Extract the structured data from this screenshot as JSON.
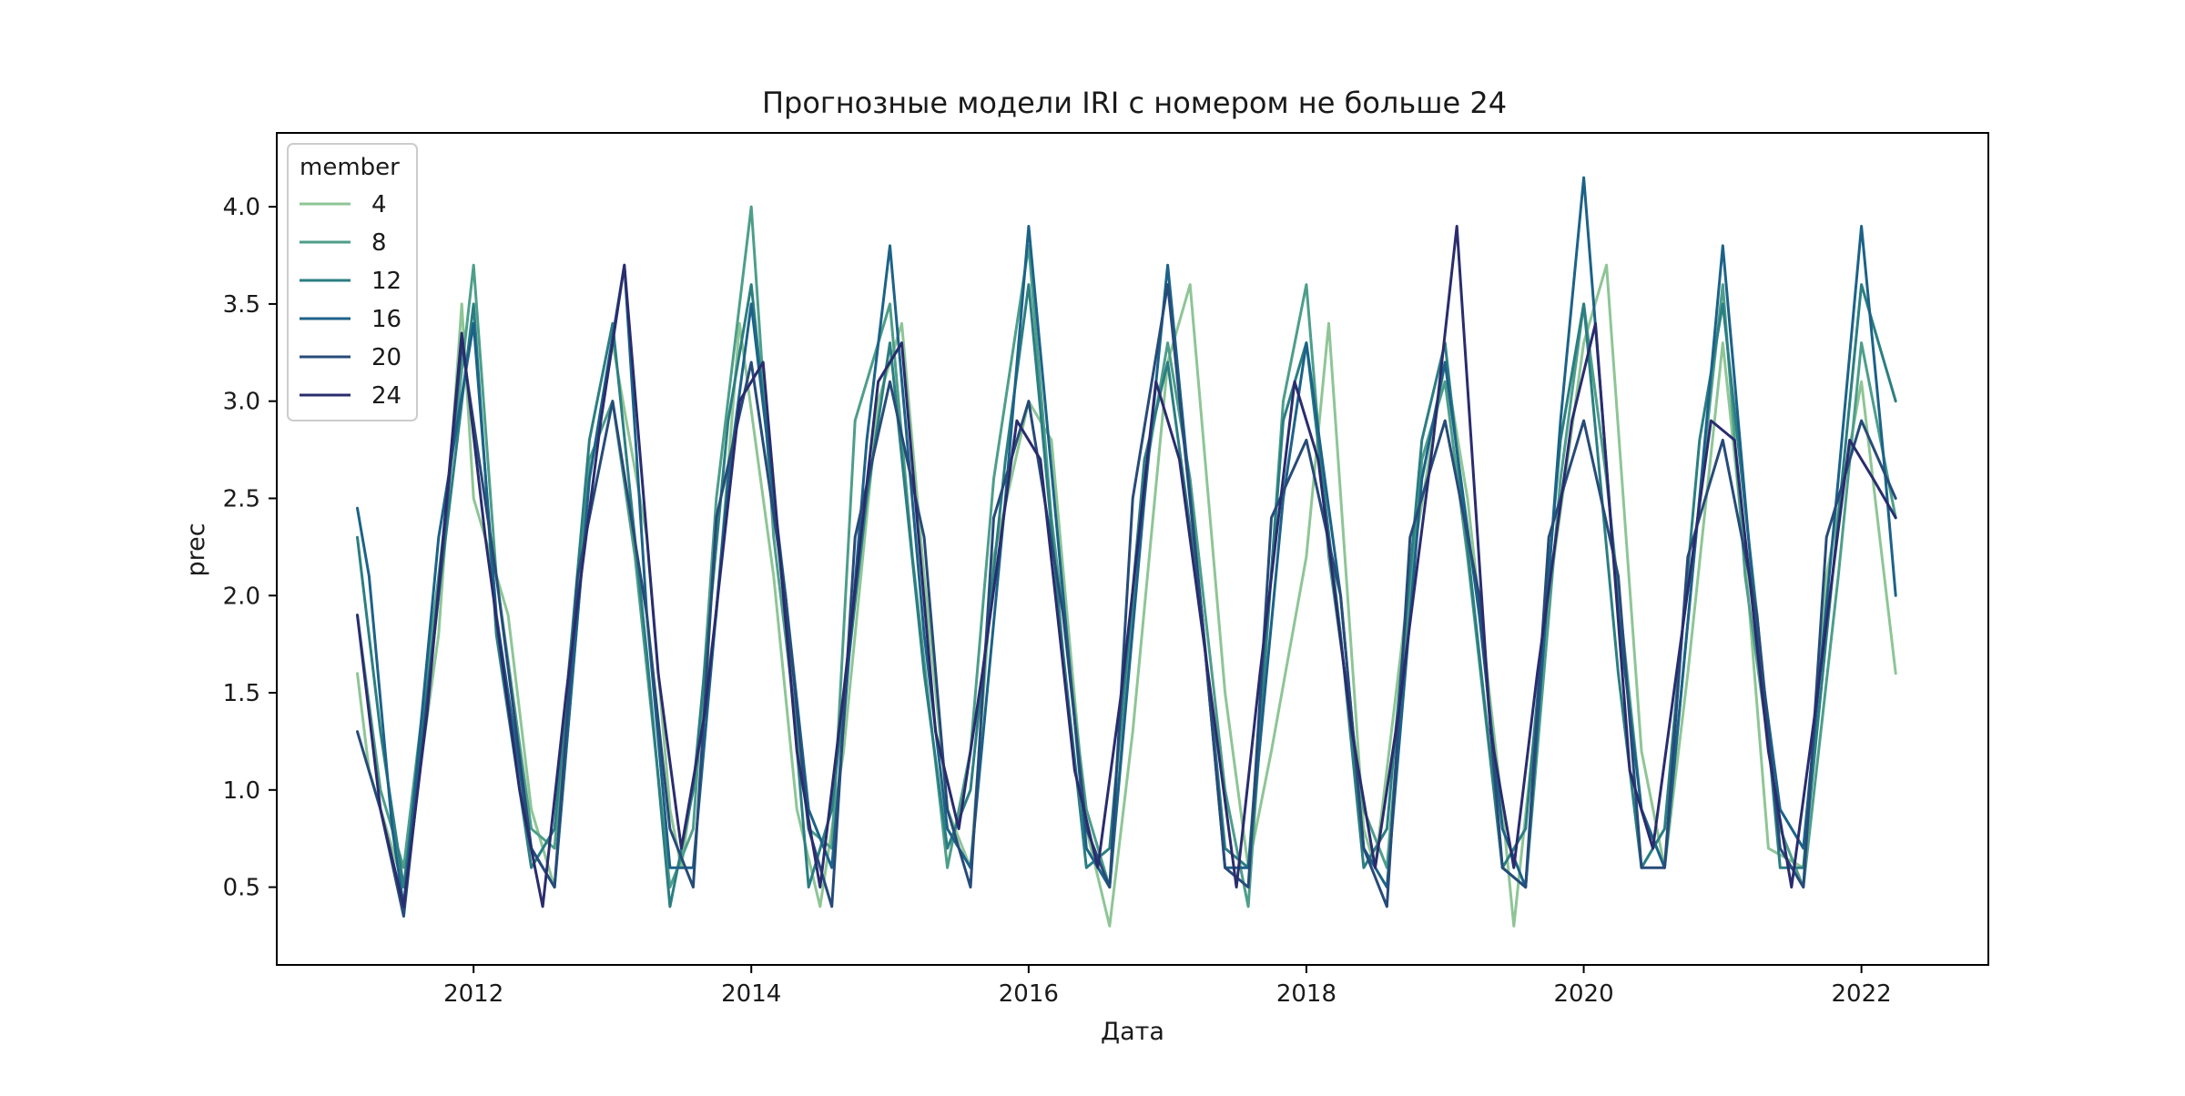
{
  "chart_data": {
    "type": "line",
    "title": "Прогнозные модели IRI с номером не больше 24",
    "xlabel": "Дата",
    "ylabel": "prec",
    "x_axis": {
      "type": "date",
      "range": [
        "2010-08-01",
        "2022-12-01"
      ],
      "ticks": [
        "2012",
        "2014",
        "2016",
        "2018",
        "2020",
        "2022"
      ],
      "tick_dates": [
        "2012-01-01",
        "2014-01-01",
        "2016-01-01",
        "2018-01-01",
        "2020-01-01",
        "2022-01-01"
      ]
    },
    "y_axis": {
      "range": [
        0.1,
        4.38
      ],
      "ticks": [
        "0.5",
        "1.0",
        "1.5",
        "2.0",
        "2.5",
        "3.0",
        "3.5",
        "4.0"
      ],
      "tick_values": [
        0.5,
        1.0,
        1.5,
        2.0,
        2.5,
        3.0,
        3.5,
        4.0
      ]
    },
    "grid": false,
    "legend": {
      "title": "member",
      "position": "top-left"
    },
    "series": [
      {
        "name": "4",
        "color": "#8ec596",
        "x": [
          "2011-03-01",
          "2011-04-01",
          "2011-06-01",
          "2011-07-01",
          "2011-10-01",
          "2011-12-01",
          "2012-01-01",
          "2012-04-01",
          "2012-06-01",
          "2012-08-01",
          "2012-11-01",
          "2013-01-01",
          "2013-04-01",
          "2013-06-01",
          "2013-07-01",
          "2013-10-01",
          "2013-12-01",
          "2014-03-01",
          "2014-05-01",
          "2014-07-01",
          "2014-09-01",
          "2014-12-01",
          "2015-02-01",
          "2015-04-01",
          "2015-06-01",
          "2015-08-01",
          "2015-10-01",
          "2016-01-01",
          "2016-03-01",
          "2016-06-01",
          "2016-08-01",
          "2016-10-01",
          "2017-01-01",
          "2017-03-01",
          "2017-06-01",
          "2017-08-01",
          "2017-10-01",
          "2018-01-01",
          "2018-03-01",
          "2018-06-01",
          "2018-07-01",
          "2018-10-01",
          "2019-01-01",
          "2019-03-01",
          "2019-06-01",
          "2019-07-01",
          "2019-10-01",
          "2020-01-01",
          "2020-03-01",
          "2020-06-01",
          "2020-08-01",
          "2020-10-01",
          "2021-01-01",
          "2021-03-01",
          "2021-05-01",
          "2021-08-01",
          "2021-10-01",
          "2022-01-01",
          "2022-04-01"
        ],
        "values": [
          1.6,
          1.1,
          0.7,
          0.5,
          1.8,
          3.5,
          2.5,
          1.9,
          0.9,
          0.5,
          2.6,
          3.3,
          2.3,
          0.9,
          0.6,
          1.9,
          3.4,
          2.1,
          0.9,
          0.4,
          1.2,
          3.0,
          3.4,
          2.1,
          0.9,
          0.6,
          2.2,
          3.0,
          2.8,
          0.8,
          0.3,
          1.3,
          3.2,
          3.6,
          1.5,
          0.6,
          1.2,
          2.2,
          3.4,
          0.8,
          0.6,
          2.1,
          3.2,
          2.5,
          0.9,
          0.3,
          2.0,
          3.3,
          3.7,
          1.2,
          0.6,
          1.6,
          3.3,
          2.2,
          0.7,
          0.6,
          2.1,
          3.1,
          1.6
        ]
      },
      {
        "name": "8",
        "color": "#4d9e8a",
        "x": [
          "2011-03-01",
          "2011-05-01",
          "2011-07-01",
          "2011-10-01",
          "2012-01-01",
          "2012-03-01",
          "2012-06-01",
          "2012-08-01",
          "2012-11-01",
          "2013-01-01",
          "2013-03-01",
          "2013-06-01",
          "2013-08-01",
          "2013-10-01",
          "2014-01-01",
          "2014-03-01",
          "2014-06-01",
          "2014-08-01",
          "2014-10-01",
          "2015-01-01",
          "2015-03-01",
          "2015-06-01",
          "2015-08-01",
          "2015-10-01",
          "2016-01-01",
          "2016-03-01",
          "2016-06-01",
          "2016-08-01",
          "2016-11-01",
          "2017-01-01",
          "2017-03-01",
          "2017-06-01",
          "2017-08-01",
          "2017-11-01",
          "2018-01-01",
          "2018-03-01",
          "2018-06-01",
          "2018-08-01",
          "2018-11-01",
          "2019-01-01",
          "2019-03-01",
          "2019-06-01",
          "2019-08-01",
          "2019-11-01",
          "2020-01-01",
          "2020-03-01",
          "2020-06-01",
          "2020-08-01",
          "2020-11-01",
          "2021-01-01",
          "2021-03-01",
          "2021-06-01",
          "2021-08-01",
          "2021-11-01",
          "2022-01-01",
          "2022-04-01"
        ],
        "values": [
          1.9,
          1.0,
          0.6,
          2.1,
          3.7,
          2.1,
          0.8,
          0.7,
          2.7,
          3.0,
          2.2,
          0.5,
          0.8,
          2.5,
          4.0,
          2.3,
          0.8,
          0.7,
          2.9,
          3.5,
          2.2,
          0.6,
          1.2,
          2.6,
          3.8,
          2.4,
          0.9,
          0.5,
          2.6,
          3.3,
          2.6,
          1.0,
          0.4,
          3.0,
          3.6,
          2.2,
          0.9,
          0.6,
          2.7,
          3.1,
          2.2,
          0.6,
          0.5,
          2.6,
          3.5,
          2.6,
          0.9,
          0.6,
          2.5,
          3.6,
          2.1,
          0.8,
          0.5,
          2.1,
          3.3,
          2.4
        ]
      },
      {
        "name": "12",
        "color": "#2b7e82",
        "x": [
          "2011-03-01",
          "2011-05-01",
          "2011-07-01",
          "2011-10-01",
          "2012-01-01",
          "2012-03-01",
          "2012-06-01",
          "2012-08-01",
          "2012-11-01",
          "2013-01-01",
          "2013-04-01",
          "2013-06-01",
          "2013-08-01",
          "2013-11-01",
          "2014-01-01",
          "2014-04-01",
          "2014-06-01",
          "2014-08-01",
          "2014-11-01",
          "2015-01-01",
          "2015-04-01",
          "2015-06-01",
          "2015-08-01",
          "2015-11-01",
          "2016-01-01",
          "2016-04-01",
          "2016-06-01",
          "2016-08-01",
          "2016-11-01",
          "2017-01-01",
          "2017-04-01",
          "2017-06-01",
          "2017-08-01",
          "2017-11-01",
          "2018-01-01",
          "2018-04-01",
          "2018-06-01",
          "2018-08-01",
          "2018-11-01",
          "2019-01-01",
          "2019-04-01",
          "2019-06-01",
          "2019-08-01",
          "2019-11-01",
          "2020-01-01",
          "2020-04-01",
          "2020-06-01",
          "2020-08-01",
          "2020-11-01",
          "2021-01-01",
          "2021-04-01",
          "2021-06-01",
          "2021-08-01",
          "2021-11-01",
          "2022-01-01",
          "2022-04-01"
        ],
        "values": [
          2.3,
          1.3,
          0.5,
          2.0,
          3.5,
          1.8,
          0.6,
          0.8,
          2.8,
          3.4,
          1.7,
          0.4,
          1.0,
          2.9,
          3.6,
          1.9,
          0.5,
          0.9,
          2.5,
          3.3,
          1.6,
          0.7,
          1.0,
          2.7,
          3.6,
          1.7,
          0.6,
          0.7,
          2.7,
          3.2,
          1.9,
          0.7,
          0.6,
          2.9,
          3.3,
          1.8,
          0.6,
          0.8,
          2.8,
          3.3,
          1.7,
          0.6,
          0.8,
          2.8,
          3.5,
          1.6,
          0.6,
          0.8,
          2.8,
          3.5,
          1.9,
          0.6,
          0.6,
          2.4,
          3.6,
          3.0
        ]
      },
      {
        "name": "16",
        "color": "#1c6288",
        "x": [
          "2011-03-01",
          "2011-04-01",
          "2011-06-01",
          "2011-07-01",
          "2011-10-01",
          "2012-01-01",
          "2012-03-01",
          "2012-06-01",
          "2012-08-01",
          "2012-11-01",
          "2013-02-01",
          "2013-04-01",
          "2013-06-01",
          "2013-08-01",
          "2013-11-01",
          "2014-01-01",
          "2014-04-01",
          "2014-06-01",
          "2014-08-01",
          "2014-11-01",
          "2015-01-01",
          "2015-04-01",
          "2015-06-01",
          "2015-08-01",
          "2015-11-01",
          "2016-01-01",
          "2016-04-01",
          "2016-06-01",
          "2016-08-01",
          "2016-11-01",
          "2017-01-01",
          "2017-04-01",
          "2017-06-01",
          "2017-08-01",
          "2017-11-01",
          "2018-01-01",
          "2018-04-01",
          "2018-06-01",
          "2018-08-01",
          "2018-11-01",
          "2019-01-01",
          "2019-04-01",
          "2019-06-01",
          "2019-08-01",
          "2019-11-01",
          "2020-01-01",
          "2020-04-01",
          "2020-06-01",
          "2020-08-01",
          "2020-11-01",
          "2021-01-01",
          "2021-04-01",
          "2021-06-01",
          "2021-08-01",
          "2021-11-01",
          "2022-01-01",
          "2022-03-01",
          "2022-04-01"
        ],
        "values": [
          2.45,
          2.1,
          0.8,
          0.4,
          2.3,
          3.4,
          1.9,
          0.7,
          0.5,
          2.6,
          3.7,
          1.9,
          0.6,
          0.6,
          2.6,
          3.5,
          2.0,
          0.9,
          0.6,
          2.8,
          3.8,
          1.8,
          0.8,
          0.6,
          2.5,
          3.9,
          2.0,
          0.7,
          0.5,
          2.5,
          3.7,
          1.9,
          0.6,
          0.6,
          2.5,
          3.3,
          2.0,
          0.7,
          0.5,
          2.6,
          3.2,
          1.9,
          0.8,
          0.5,
          2.9,
          4.15,
          1.9,
          0.9,
          0.6,
          2.5,
          3.8,
          1.8,
          0.9,
          0.7,
          2.6,
          3.9,
          2.7,
          2.0
        ]
      },
      {
        "name": "20",
        "color": "#274b79",
        "x": [
          "2011-03-01",
          "2011-05-01",
          "2011-07-01",
          "2011-10-01",
          "2011-12-01",
          "2012-03-01",
          "2012-06-01",
          "2012-08-01",
          "2012-10-01",
          "2013-01-01",
          "2013-04-01",
          "2013-06-01",
          "2013-08-01",
          "2013-10-01",
          "2014-01-01",
          "2014-04-01",
          "2014-06-01",
          "2014-08-01",
          "2014-10-01",
          "2015-01-01",
          "2015-04-01",
          "2015-06-01",
          "2015-08-01",
          "2015-10-01",
          "2016-01-01",
          "2016-04-01",
          "2016-06-01",
          "2016-08-01",
          "2016-10-01",
          "2017-01-01",
          "2017-04-01",
          "2017-06-01",
          "2017-08-01",
          "2017-10-01",
          "2018-01-01",
          "2018-04-01",
          "2018-06-01",
          "2018-08-01",
          "2018-10-01",
          "2019-01-01",
          "2019-04-01",
          "2019-06-01",
          "2019-08-01",
          "2019-10-01",
          "2020-01-01",
          "2020-04-01",
          "2020-06-01",
          "2020-08-01",
          "2020-10-01",
          "2021-01-01",
          "2021-04-01",
          "2021-06-01",
          "2021-08-01",
          "2021-10-01",
          "2022-01-01",
          "2022-04-01"
        ],
        "values": [
          1.3,
          0.9,
          0.35,
          2.0,
          3.3,
          2.1,
          0.7,
          0.5,
          2.1,
          3.0,
          1.9,
          0.8,
          0.5,
          2.4,
          3.2,
          2.0,
          0.8,
          0.4,
          2.3,
          3.1,
          2.3,
          0.9,
          0.5,
          2.4,
          3.0,
          1.9,
          0.8,
          0.5,
          2.5,
          3.6,
          1.9,
          0.6,
          0.5,
          2.4,
          2.8,
          2.0,
          0.7,
          0.4,
          2.3,
          2.9,
          2.0,
          0.6,
          0.5,
          2.3,
          2.9,
          2.1,
          0.6,
          0.6,
          2.2,
          2.8,
          1.9,
          0.7,
          0.5,
          2.3,
          2.9,
          2.5
        ]
      },
      {
        "name": "24",
        "color": "#2a2c6e",
        "x": [
          "2011-03-01",
          "2011-05-01",
          "2011-07-01",
          "2011-09-01",
          "2011-12-01",
          "2012-02-01",
          "2012-05-01",
          "2012-07-01",
          "2012-09-01",
          "2012-12-01",
          "2013-02-01",
          "2013-05-01",
          "2013-07-01",
          "2013-09-01",
          "2013-12-01",
          "2014-02-01",
          "2014-05-01",
          "2014-07-01",
          "2014-09-01",
          "2014-12-01",
          "2015-02-01",
          "2015-05-01",
          "2015-07-01",
          "2015-09-01",
          "2015-12-01",
          "2016-02-01",
          "2016-05-01",
          "2016-07-01",
          "2016-09-01",
          "2016-12-01",
          "2017-02-01",
          "2017-05-01",
          "2017-07-01",
          "2017-09-01",
          "2017-12-01",
          "2018-02-01",
          "2018-05-01",
          "2018-07-01",
          "2018-09-01",
          "2018-12-01",
          "2019-02-01",
          "2019-05-01",
          "2019-07-01",
          "2019-09-01",
          "2019-12-01",
          "2020-02-01",
          "2020-05-01",
          "2020-07-01",
          "2020-09-01",
          "2020-12-01",
          "2021-02-01",
          "2021-05-01",
          "2021-07-01",
          "2021-09-01",
          "2021-12-01",
          "2022-02-01",
          "2022-04-01"
        ],
        "values": [
          1.9,
          0.9,
          0.4,
          1.4,
          3.35,
          2.3,
          1.0,
          0.4,
          1.5,
          2.9,
          3.7,
          1.6,
          0.7,
          1.4,
          3.0,
          3.2,
          1.2,
          0.5,
          1.5,
          3.1,
          3.3,
          1.3,
          0.8,
          1.6,
          2.9,
          2.7,
          1.1,
          0.6,
          1.5,
          3.1,
          2.7,
          1.4,
          0.5,
          1.6,
          3.1,
          2.7,
          1.3,
          0.6,
          1.4,
          2.8,
          3.9,
          1.3,
          0.6,
          1.6,
          2.9,
          3.4,
          1.1,
          0.7,
          1.6,
          2.9,
          2.8,
          1.2,
          0.5,
          1.4,
          2.8,
          2.6,
          2.4
        ]
      }
    ]
  }
}
